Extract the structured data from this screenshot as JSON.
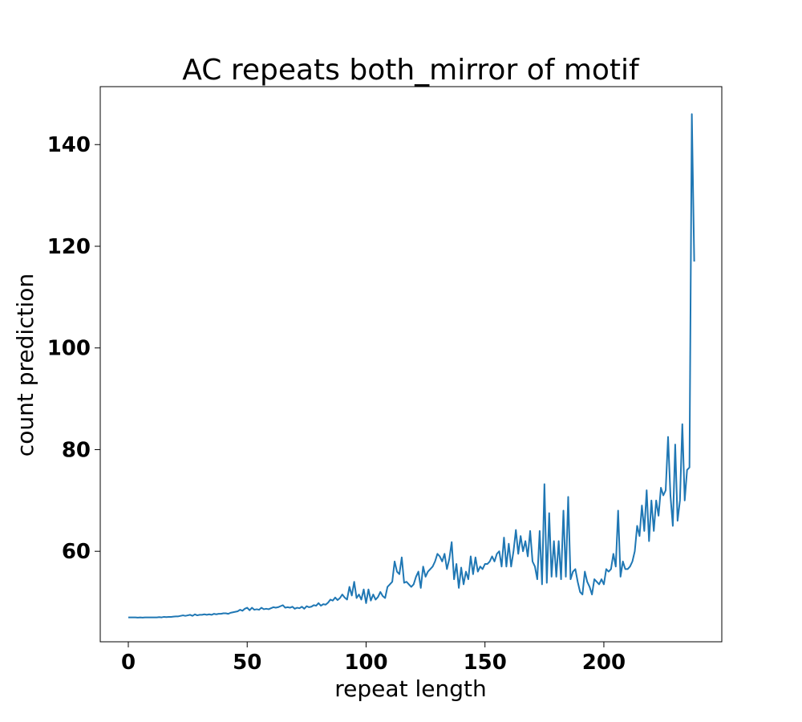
{
  "chart_data": {
    "type": "line",
    "title": "AC repeats both_mirror of motif",
    "x_label": "repeat length",
    "y_label": "count prediction",
    "color": "#1f77b4",
    "x": [
      0,
      1,
      2,
      3,
      4,
      5,
      6,
      7,
      8,
      9,
      10,
      11,
      12,
      13,
      14,
      15,
      16,
      17,
      18,
      19,
      20,
      21,
      22,
      23,
      24,
      25,
      26,
      27,
      28,
      29,
      30,
      31,
      32,
      33,
      34,
      35,
      36,
      37,
      38,
      39,
      40,
      41,
      42,
      43,
      44,
      45,
      46,
      47,
      48,
      49,
      50,
      51,
      52,
      53,
      54,
      55,
      56,
      57,
      58,
      59,
      60,
      61,
      62,
      63,
      64,
      65,
      66,
      67,
      68,
      69,
      70,
      71,
      72,
      73,
      74,
      75,
      76,
      77,
      78,
      79,
      80,
      81,
      82,
      83,
      84,
      85,
      86,
      87,
      88,
      89,
      90,
      91,
      92,
      93,
      94,
      95,
      96,
      97,
      98,
      99,
      100,
      101,
      102,
      103,
      104,
      105,
      106,
      107,
      108,
      109,
      110,
      111,
      112,
      113,
      114,
      115,
      116,
      117,
      118,
      119,
      120,
      121,
      122,
      123,
      124,
      125,
      126,
      127,
      128,
      129,
      130,
      131,
      132,
      133,
      134,
      135,
      136,
      137,
      138,
      139,
      140,
      141,
      142,
      143,
      144,
      145,
      146,
      147,
      148,
      149,
      150,
      151,
      152,
      153,
      154,
      155,
      156,
      157,
      158,
      159,
      160,
      161,
      162,
      163,
      164,
      165,
      166,
      167,
      168,
      169,
      170,
      171,
      172,
      173,
      174,
      175,
      176,
      177,
      178,
      179,
      180,
      181,
      182,
      183,
      184,
      185,
      186,
      187,
      188,
      189,
      190,
      191,
      192,
      193,
      194,
      195,
      196,
      197,
      198,
      199,
      200,
      201,
      202,
      203,
      204,
      205,
      206,
      207,
      208,
      209,
      210,
      211,
      212,
      213,
      214,
      215,
      216,
      217,
      218,
      219,
      220,
      221,
      222,
      223,
      224,
      225,
      226,
      227,
      228,
      229,
      230,
      231,
      232,
      233,
      234,
      235,
      236,
      237,
      238
    ],
    "values": [
      47.0,
      47.0,
      47.0,
      47.0,
      46.95,
      47.0,
      46.95,
      47.0,
      47.0,
      47.0,
      47.0,
      47.0,
      47.0,
      47.05,
      47.0,
      47.1,
      47.05,
      47.1,
      47.1,
      47.15,
      47.2,
      47.2,
      47.3,
      47.4,
      47.3,
      47.4,
      47.5,
      47.3,
      47.6,
      47.4,
      47.5,
      47.5,
      47.6,
      47.5,
      47.6,
      47.5,
      47.7,
      47.6,
      47.7,
      47.7,
      47.8,
      47.8,
      47.7,
      47.9,
      48.0,
      48.1,
      48.2,
      48.5,
      48.3,
      48.7,
      48.9,
      48.4,
      48.9,
      48.5,
      48.6,
      48.5,
      48.9,
      48.6,
      48.7,
      48.6,
      48.8,
      49.0,
      48.9,
      49.0,
      49.2,
      49.4,
      48.9,
      49.0,
      48.9,
      49.1,
      48.7,
      48.9,
      48.8,
      49.1,
      48.7,
      49.2,
      49.0,
      49.1,
      49.4,
      49.3,
      49.8,
      49.3,
      49.6,
      49.5,
      49.9,
      50.5,
      50.3,
      50.9,
      50.4,
      50.8,
      51.5,
      50.9,
      50.5,
      53.0,
      51.3,
      54.0,
      50.8,
      51.5,
      50.5,
      52.5,
      49.8,
      52.5,
      50.3,
      51.5,
      50.5,
      51.0,
      52.0,
      51.2,
      50.8,
      53.0,
      53.5,
      54.0,
      58.0,
      56.0,
      55.5,
      58.8,
      53.8,
      54.0,
      53.5,
      53.0,
      53.5,
      55.0,
      56.0,
      52.8,
      57.0,
      55.0,
      56.0,
      56.5,
      57.0,
      58.0,
      59.5,
      59.0,
      58.0,
      59.5,
      56.5,
      58.5,
      61.8,
      54.5,
      57.5,
      52.8,
      56.8,
      53.5,
      56.0,
      54.5,
      59.0,
      55.5,
      58.8,
      56.0,
      57.0,
      56.5,
      57.5,
      57.5,
      58.0,
      59.0,
      58.0,
      59.5,
      60.0,
      57.0,
      62.7,
      57.0,
      61.5,
      57.0,
      60.0,
      64.2,
      59.5,
      63.0,
      60.0,
      62.0,
      59.0,
      64.0,
      58.0,
      57.0,
      54.5,
      64.0,
      53.5,
      73.2,
      53.8,
      67.5,
      55.0,
      62.0,
      55.0,
      62.0,
      54.5,
      68.0,
      55.0,
      70.7,
      54.5,
      56.0,
      56.5,
      54.0,
      52.0,
      51.5,
      56.0,
      54.0,
      53.0,
      51.5,
      54.5,
      54.0,
      53.5,
      54.5,
      53.5,
      56.5,
      56.0,
      56.5,
      59.5,
      57.0,
      68.0,
      55.0,
      58.0,
      56.5,
      56.5,
      57.0,
      58.0,
      60.0,
      65.0,
      63.0,
      69.0,
      64.0,
      72.0,
      62.0,
      70.0,
      64.0,
      70.0,
      67.0,
      72.5,
      71.0,
      72.0,
      82.5,
      71.0,
      65.0,
      81.0,
      66.0,
      70.0,
      85.0,
      70.0,
      76.0,
      76.5,
      146.0,
      117.0
    ],
    "xlim": [
      -11.8,
      249.6
    ],
    "ylim": [
      42.2,
      151.4
    ],
    "xticks": [
      0,
      50,
      100,
      150,
      200
    ],
    "yticks": [
      60,
      80,
      100,
      120,
      140
    ]
  }
}
